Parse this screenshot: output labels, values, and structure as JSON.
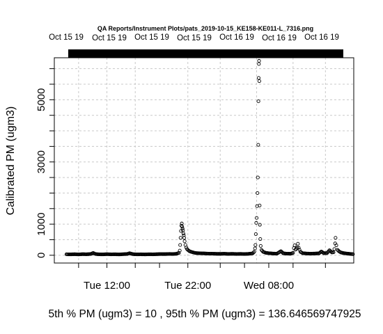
{
  "chart_data": {
    "type": "scatter",
    "title": "QA Reports/Instrument Plots/pats_2019-10-15_KE158-KE011-L_7316.png",
    "ylabel": "Calibrated PM (ugm3)",
    "xlabel": "",
    "footer": "5th % PM (ugm3) =  10 , 95th % PM (ugm3)  =  136.646569747925",
    "top_axis_labels": [
      "Oct 15 19",
      "Oct 15 19",
      "Oct 15 19",
      "Oct 15 19",
      "Oct 16 19",
      "Oct 16 19",
      "Oct 16 19"
    ],
    "x_tick_labels": [
      {
        "label": "Tue 12:00",
        "x": 12
      },
      {
        "label": "Tue 22:00",
        "x": 22
      },
      {
        "label": "Wed 08:00",
        "x": 32
      }
    ],
    "x_unit": "hours since Tue 00:00",
    "xlim": [
      5.5,
      42.5
    ],
    "y_ticks": [
      0,
      1000,
      3000,
      5000
    ],
    "ylim": [
      -250,
      6350
    ],
    "grid": true,
    "series": [
      {
        "values": [
          [
            7.0,
            30
          ],
          [
            7.5,
            28
          ],
          [
            8.0,
            33
          ],
          [
            8.5,
            26
          ],
          [
            9.0,
            35
          ],
          [
            9.5,
            31
          ],
          [
            10.0,
            40
          ],
          [
            10.3,
            72
          ],
          [
            10.6,
            38
          ],
          [
            11.0,
            30
          ],
          [
            11.5,
            27
          ],
          [
            12.0,
            35
          ],
          [
            12.5,
            29
          ],
          [
            13.0,
            31
          ],
          [
            13.5,
            26
          ],
          [
            14.0,
            34
          ],
          [
            14.5,
            40
          ],
          [
            14.8,
            65
          ],
          [
            15.2,
            35
          ],
          [
            15.7,
            28
          ],
          [
            16.2,
            30
          ],
          [
            16.7,
            26
          ],
          [
            17.2,
            32
          ],
          [
            17.7,
            29
          ],
          [
            18.2,
            34
          ],
          [
            18.7,
            38
          ],
          [
            19.2,
            36
          ],
          [
            19.7,
            42
          ],
          [
            20.2,
            39
          ],
          [
            20.6,
            48
          ],
          [
            20.9,
            75
          ],
          [
            21.0,
            150
          ],
          [
            21.05,
            330
          ],
          [
            21.1,
            560
          ],
          [
            21.15,
            780
          ],
          [
            21.2,
            950
          ],
          [
            21.25,
            1020
          ],
          [
            21.3,
            920
          ],
          [
            21.35,
            860
          ],
          [
            21.4,
            800
          ],
          [
            21.45,
            700
          ],
          [
            21.5,
            640
          ],
          [
            21.55,
            560
          ],
          [
            21.6,
            450
          ],
          [
            21.7,
            330
          ],
          [
            21.8,
            250
          ],
          [
            21.9,
            200
          ],
          [
            22.0,
            170
          ],
          [
            22.2,
            130
          ],
          [
            22.4,
            110
          ],
          [
            22.6,
            95
          ],
          [
            22.8,
            80
          ],
          [
            23.0,
            70
          ],
          [
            23.5,
            62
          ],
          [
            24.0,
            58
          ],
          [
            24.5,
            52
          ],
          [
            25.0,
            50
          ],
          [
            25.5,
            46
          ],
          [
            26.0,
            45
          ],
          [
            26.5,
            48
          ],
          [
            27.0,
            42
          ],
          [
            27.5,
            46
          ],
          [
            28.0,
            40
          ],
          [
            28.5,
            44
          ],
          [
            29.0,
            39
          ],
          [
            29.5,
            45
          ],
          [
            30.0,
            60
          ],
          [
            30.2,
            110
          ],
          [
            30.3,
            220
          ],
          [
            30.35,
            330
          ],
          [
            30.4,
            680
          ],
          [
            30.45,
            1040
          ],
          [
            30.5,
            1200
          ],
          [
            30.55,
            1580
          ],
          [
            30.6,
            2000
          ],
          [
            30.65,
            2500
          ],
          [
            30.7,
            3550
          ],
          [
            30.72,
            4950
          ],
          [
            30.75,
            5700
          ],
          [
            30.78,
            6150
          ],
          [
            30.8,
            6250
          ],
          [
            30.83,
            5600
          ],
          [
            30.87,
            1600
          ],
          [
            30.9,
            980
          ],
          [
            30.95,
            520
          ],
          [
            31.0,
            300
          ],
          [
            31.1,
            170
          ],
          [
            31.3,
            110
          ],
          [
            31.6,
            80
          ],
          [
            32.0,
            65
          ],
          [
            32.5,
            55
          ],
          [
            33.0,
            50
          ],
          [
            33.5,
            130
          ],
          [
            33.8,
            60
          ],
          [
            34.2,
            52
          ],
          [
            34.7,
            48
          ],
          [
            35.0,
            75
          ],
          [
            35.1,
            230
          ],
          [
            35.2,
            320
          ],
          [
            35.3,
            180
          ],
          [
            35.5,
            240
          ],
          [
            35.6,
            370
          ],
          [
            35.7,
            240
          ],
          [
            35.9,
            110
          ],
          [
            36.2,
            65
          ],
          [
            36.7,
            55
          ],
          [
            37.2,
            50
          ],
          [
            37.7,
            55
          ],
          [
            38.2,
            60
          ],
          [
            38.5,
            120
          ],
          [
            38.8,
            65
          ],
          [
            39.2,
            70
          ],
          [
            39.5,
            160
          ],
          [
            39.8,
            90
          ],
          [
            40.0,
            95
          ],
          [
            40.1,
            200
          ],
          [
            40.2,
            380
          ],
          [
            40.25,
            560
          ],
          [
            40.35,
            320
          ],
          [
            40.5,
            170
          ],
          [
            40.7,
            120
          ],
          [
            40.9,
            90
          ],
          [
            41.2,
            70
          ],
          [
            41.6,
            55
          ],
          [
            42.0,
            45
          ],
          [
            42.4,
            35
          ]
        ]
      }
    ]
  }
}
